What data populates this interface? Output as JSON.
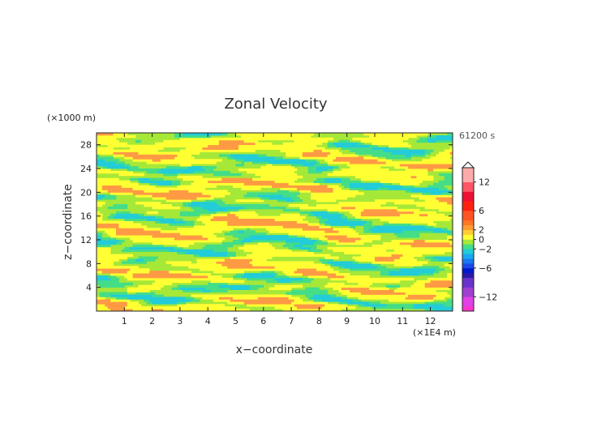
{
  "chart_data": {
    "type": "heatmap",
    "title": "Zonal Velocity",
    "xlabel": "x−coordinate",
    "ylabel": "z−coordinate",
    "x_unit": "(×1E4 m)",
    "y_unit": "(×1000 m)",
    "time_label": "61200 s",
    "xlim": [
      0,
      12.8
    ],
    "ylim": [
      0,
      30
    ],
    "x_ticks": [
      1,
      2,
      3,
      4,
      5,
      6,
      7,
      8,
      9,
      10,
      11,
      12
    ],
    "x_tick_labels": [
      "1",
      "2",
      "3",
      "4",
      "5",
      "6",
      "7",
      "8",
      "9",
      "10",
      "11",
      "12"
    ],
    "y_ticks": [
      4,
      8,
      12,
      16,
      20,
      24,
      28
    ],
    "y_tick_labels": [
      "4",
      "8",
      "12",
      "16",
      "20",
      "24",
      "28"
    ],
    "colorbar": {
      "range": [
        -15,
        15
      ],
      "tick_values": [
        12,
        6,
        2,
        0,
        -2,
        -6,
        -12
      ],
      "tick_labels": [
        "12",
        "6",
        "2",
        "0",
        "−2",
        "−6",
        "−12"
      ],
      "levels": [
        {
          "lo": -15,
          "hi": -14,
          "color": "#ff33cc"
        },
        {
          "lo": -14,
          "hi": -12,
          "color": "#e040e8"
        },
        {
          "lo": -12,
          "hi": -10,
          "color": "#a040d0"
        },
        {
          "lo": -10,
          "hi": -8,
          "color": "#6a32c8"
        },
        {
          "lo": -8,
          "hi": -7,
          "color": "#2a1aa8"
        },
        {
          "lo": -7,
          "hi": -6,
          "color": "#0018d0"
        },
        {
          "lo": -6,
          "hi": -5,
          "color": "#1a4ae8"
        },
        {
          "lo": -5,
          "hi": -4,
          "color": "#1a78f0"
        },
        {
          "lo": -4,
          "hi": -3,
          "color": "#19a8f0"
        },
        {
          "lo": -3,
          "hi": -2,
          "color": "#22ccd8"
        },
        {
          "lo": -2,
          "hi": -1,
          "color": "#44dd88"
        },
        {
          "lo": -1,
          "hi": 0,
          "color": "#a6e838"
        },
        {
          "lo": 0,
          "hi": 1,
          "color": "#ffff33"
        },
        {
          "lo": 1,
          "hi": 2,
          "color": "#ffcc33"
        },
        {
          "lo": 2,
          "hi": 3,
          "color": "#ff9933"
        },
        {
          "lo": 3,
          "hi": 4,
          "color": "#ff7722"
        },
        {
          "lo": 4,
          "hi": 6,
          "color": "#ff5522"
        },
        {
          "lo": 6,
          "hi": 8,
          "color": "#ff2211"
        },
        {
          "lo": 8,
          "hi": 10,
          "color": "#ee1133"
        },
        {
          "lo": 10,
          "hi": 12,
          "color": "#ff5566"
        },
        {
          "lo": 12,
          "hi": 15,
          "color": "#ffaaaa"
        }
      ]
    },
    "field_colors": {
      "pos_strong": "#ff9a44",
      "pos_weak": "#ffff33",
      "neutral": "#a6e838",
      "neg_weak": "#44dd88",
      "neg_strong": "#22ccd8"
    },
    "grid": false
  }
}
